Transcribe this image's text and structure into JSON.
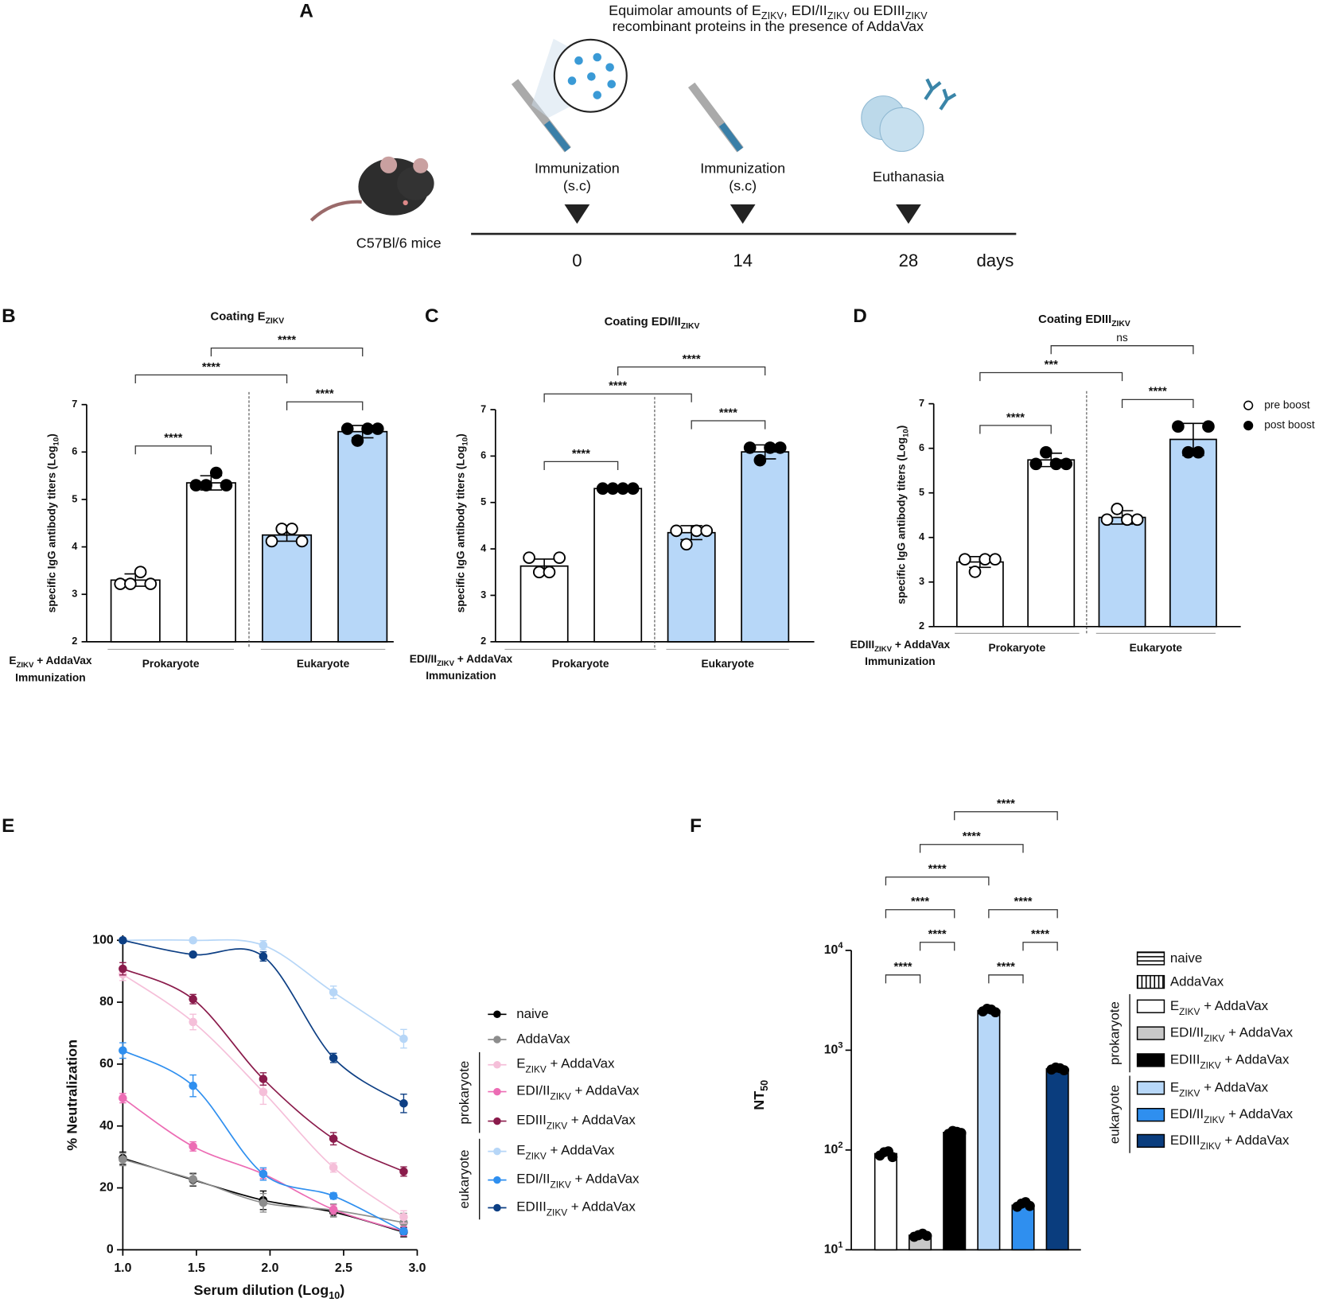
{
  "panel_a": {
    "label": "A",
    "header": [
      [
        "Equimolar amounts of E",
        "ZIKV",
        ", EDI/II",
        "ZIKV",
        " ou EDIII",
        "ZIKV"
      ],
      [
        "recombinant proteins in the presence of AddaVax"
      ]
    ],
    "subject": "C57Bl/6 mice",
    "events": [
      {
        "label": [
          "Immunization",
          "(s.c)"
        ],
        "day": 0
      },
      {
        "label": [
          "Immunization",
          "(s.c)"
        ],
        "day": 14
      },
      {
        "label": [
          "Euthanasia"
        ],
        "day": 28
      }
    ],
    "unit": "days"
  },
  "chart_data": [
    {
      "type": "bar",
      "label": "B",
      "title": [
        "Coating E",
        "ZIKV"
      ],
      "y_label": [
        "specific IgG antibody titers (Log",
        "10",
        ")"
      ],
      "x_label": [
        [
          "E",
          "ZIKV",
          " + AddaVax"
        ],
        [
          "Immunization"
        ]
      ],
      "groups": [
        "Prokaryote",
        "Eukaryote"
      ],
      "ylim": [
        2,
        7
      ],
      "yticks": [
        2,
        3,
        4,
        5,
        6,
        7
      ],
      "values": [
        3.3,
        5.35,
        4.25,
        6.43
      ],
      "errors": [
        0.13,
        0.15,
        0.13,
        0.13
      ],
      "points": [
        [
          3.22,
          3.22,
          3.47,
          3.22
        ],
        [
          5.3,
          5.3,
          5.56,
          5.3
        ],
        [
          4.12,
          4.38,
          4.38,
          4.12
        ],
        [
          6.49,
          6.24,
          6.49,
          6.49
        ]
      ],
      "colors": [
        "#ffffff",
        "#ffffff",
        "#b7d7f8",
        "#b7d7f8"
      ],
      "brackets": [
        {
          "from": 0,
          "to": 1,
          "label": "****"
        },
        {
          "from": 2,
          "to": 3,
          "label": "****"
        },
        {
          "from": 0,
          "to": 2,
          "label": "****"
        },
        {
          "from": 1,
          "to": 3,
          "label": "****"
        }
      ]
    },
    {
      "type": "bar",
      "label": "C",
      "title": [
        "Coating EDI/II",
        "ZIKV"
      ],
      "y_label": [
        "specific IgG antibody titers (Log",
        "10",
        ")"
      ],
      "x_label": [
        [
          "EDI/II",
          "ZIKV",
          " + AddaVax"
        ],
        [
          "Immunization"
        ]
      ],
      "groups": [
        "Prokaryote",
        "Eukaryote"
      ],
      "ylim": [
        2,
        7
      ],
      "yticks": [
        2,
        3,
        4,
        5,
        6,
        7
      ],
      "values": [
        3.63,
        5.3,
        4.35,
        6.09
      ],
      "errors": [
        0.15,
        0.02,
        0.15,
        0.15
      ],
      "points": [
        [
          3.81,
          3.5,
          3.5,
          3.81
        ],
        [
          5.3,
          5.3,
          5.3,
          5.3
        ],
        [
          4.39,
          4.1,
          4.39,
          4.39
        ],
        [
          6.18,
          5.91,
          6.18,
          6.18
        ]
      ],
      "colors": [
        "#ffffff",
        "#ffffff",
        "#b7d7f8",
        "#b7d7f8"
      ],
      "brackets": [
        {
          "from": 0,
          "to": 1,
          "label": "****"
        },
        {
          "from": 2,
          "to": 3,
          "label": "****"
        },
        {
          "from": 0,
          "to": 2,
          "label": "****"
        },
        {
          "from": 1,
          "to": 3,
          "label": "****"
        }
      ]
    },
    {
      "type": "bar",
      "label": "D",
      "title": [
        "Coating EDIII",
        "ZIKV"
      ],
      "y_label": [
        "specific IgG antibody titers (Log",
        "10",
        ")"
      ],
      "x_label": [
        [
          "EDIII",
          "ZIKV",
          " + AddaVax"
        ],
        [
          "Immunization"
        ]
      ],
      "groups": [
        "Prokaryote",
        "Eukaryote"
      ],
      "ylim": [
        2,
        7
      ],
      "yticks": [
        2,
        3,
        4,
        5,
        6,
        7
      ],
      "values": [
        3.45,
        5.74,
        4.45,
        6.2
      ],
      "errors": [
        0.12,
        0.15,
        0.15,
        0.36
      ],
      "points": [
        [
          3.51,
          3.23,
          3.51,
          3.51
        ],
        [
          5.65,
          5.91,
          5.65,
          5.65
        ],
        [
          4.4,
          4.64,
          4.4,
          4.4
        ],
        [
          6.49,
          5.91,
          5.91,
          6.49
        ]
      ],
      "colors": [
        "#ffffff",
        "#ffffff",
        "#b7d7f8",
        "#b7d7f8"
      ],
      "brackets": [
        {
          "from": 0,
          "to": 1,
          "label": "****"
        },
        {
          "from": 2,
          "to": 3,
          "label": "****"
        },
        {
          "from": 0,
          "to": 2,
          "label": "***"
        },
        {
          "from": 1,
          "to": 3,
          "label": "ns"
        }
      ],
      "legend": [
        "pre boost",
        "post boost"
      ]
    },
    {
      "type": "line",
      "label": "E",
      "x_label": [
        "Serum dilution (Log",
        "10",
        ")"
      ],
      "y_label": "% Neutralization",
      "x": [
        1,
        1.477,
        1.954,
        2.431,
        2.908
      ],
      "xlim": [
        1,
        3
      ],
      "xticks": [
        {
          "value": 1,
          "label": "1.0"
        },
        1.5,
        {
          "value": 2,
          "label": "2.0"
        },
        2.5,
        {
          "value": 3,
          "label": "3.0"
        }
      ],
      "ylim": [
        0,
        100
      ],
      "yticks": [
        0,
        20,
        40,
        60,
        80,
        100
      ],
      "series": [
        {
          "name": "naive",
          "color": "#000000",
          "values": [
            29.6,
            22.6,
            16,
            12.2,
            5.7
          ],
          "errors": [
            2,
            2,
            3,
            1.5,
            1.5
          ]
        },
        {
          "name": "AddaVax",
          "color": "#8c8c8c",
          "values": [
            29.2,
            22.8,
            15.2,
            12.8,
            8.8
          ],
          "errors": [
            2,
            2,
            3,
            2,
            3
          ]
        },
        {
          "name": [
            "E",
            "ZIKV",
            " + AddaVax"
          ],
          "color": "#f5bfd9",
          "values": [
            89,
            73.6,
            51,
            26.6,
            10.6
          ],
          "errors": [
            2,
            2.5,
            4,
            1.5,
            2
          ]
        },
        {
          "name": [
            "EDI/II",
            "ZIKV",
            " + AddaVax"
          ],
          "color": "#ec6cb4",
          "values": [
            49,
            33.4,
            24.5,
            13,
            6
          ],
          "errors": [
            1.5,
            1.5,
            1.5,
            1.5,
            1.5
          ]
        },
        {
          "name": [
            "EDIII",
            "ZIKV",
            " + AddaVax"
          ],
          "color": "#8a1b4b",
          "values": [
            90.8,
            81,
            55.2,
            35.9,
            25.3
          ],
          "errors": [
            2,
            1.5,
            2,
            2,
            1.5
          ]
        },
        {
          "name": [
            "E",
            "ZIKV",
            " + AddaVax"
          ],
          "color": "#b6d6f7",
          "values": [
            100,
            100,
            98.4,
            83.2,
            68.2
          ],
          "errors": [
            0,
            0,
            1.5,
            2,
            3
          ]
        },
        {
          "name": [
            "EDI/II",
            "ZIKV",
            " + AddaVax"
          ],
          "color": "#2f8fef",
          "values": [
            64.4,
            53,
            24.5,
            17.4,
            6
          ],
          "errors": [
            2.5,
            3.5,
            2,
            1,
            1
          ]
        },
        {
          "name": [
            "EDIII",
            "ZIKV",
            " + AddaVax"
          ],
          "color": "#0d3f84",
          "values": [
            100,
            95.4,
            94.8,
            62,
            47.3
          ],
          "errors": [
            0,
            0.5,
            1.5,
            1.5,
            3
          ]
        }
      ],
      "legend_groups": [
        {
          "name": "prokaryote",
          "series": [
            2,
            3,
            4
          ]
        },
        {
          "name": "eukaryote",
          "series": [
            5,
            6,
            7
          ]
        }
      ]
    },
    {
      "type": "bar",
      "log_scale": true,
      "label": "F",
      "y_label": [
        "NT",
        "50"
      ],
      "ylim": [
        10,
        10000
      ],
      "yticks": [
        {
          "value": 10,
          "label": [
            "10",
            "1"
          ]
        },
        {
          "value": 100,
          "label": [
            "10",
            "2"
          ]
        },
        {
          "value": 1000,
          "label": [
            "10",
            "3"
          ]
        },
        {
          "value": 10000,
          "label": [
            "10",
            "4"
          ]
        }
      ],
      "series": [
        {
          "name": "naive",
          "color": "#000000",
          "pattern": "horizontal"
        },
        {
          "name": "AddaVax",
          "color": "#000000",
          "pattern": "vertical"
        },
        {
          "name": [
            "E",
            "ZIKV",
            " + AddaVax"
          ],
          "color": "#ffffff"
        },
        {
          "name": [
            "EDI/II",
            "ZIKV",
            " + AddaVax"
          ],
          "color": "#c8c8c8"
        },
        {
          "name": [
            "EDIII",
            "ZIKV",
            " + AddaVax"
          ],
          "color": "#000000"
        },
        {
          "name": [
            "E",
            "ZIKV",
            " + AddaVax"
          ],
          "color": "#b7d7f8"
        },
        {
          "name": [
            "EDI/II",
            "ZIKV",
            " + AddaVax"
          ],
          "color": "#2f8fef"
        },
        {
          "name": [
            "EDIII",
            "ZIKV",
            " + AddaVax"
          ],
          "color": "#0a3d7e"
        }
      ],
      "values": [
        null,
        null,
        92,
        14,
        150,
        2500,
        28,
        650
      ],
      "points": [
        null,
        null,
        [
          88,
          95,
          97,
          85
        ],
        [
          13.5,
          14,
          14.5,
          13.8
        ],
        [
          145,
          155,
          152,
          148
        ],
        [
          2450,
          2600,
          2550,
          2400
        ],
        [
          27,
          29,
          30,
          27.5
        ],
        [
          640,
          670,
          660,
          630
        ]
      ],
      "brackets": [
        {
          "from": 2,
          "to": 3,
          "label": "****"
        },
        {
          "from": 5,
          "to": 6,
          "label": "****"
        },
        {
          "from": 3,
          "to": 4,
          "label": "****"
        },
        {
          "from": 6,
          "to": 7,
          "label": "****"
        },
        {
          "from": 2,
          "to": 4,
          "label": "****"
        },
        {
          "from": 5,
          "to": 7,
          "label": "****"
        },
        {
          "from": 2,
          "to": 5,
          "label": "****"
        },
        {
          "from": 3,
          "to": 6,
          "label": "****"
        },
        {
          "from": 4,
          "to": 7,
          "label": "****"
        }
      ],
      "legend_groups": [
        {
          "name": "prokaryote",
          "series": [
            2,
            3,
            4
          ]
        },
        {
          "name": "eukaryote",
          "series": [
            5,
            6,
            7
          ]
        }
      ]
    }
  ]
}
